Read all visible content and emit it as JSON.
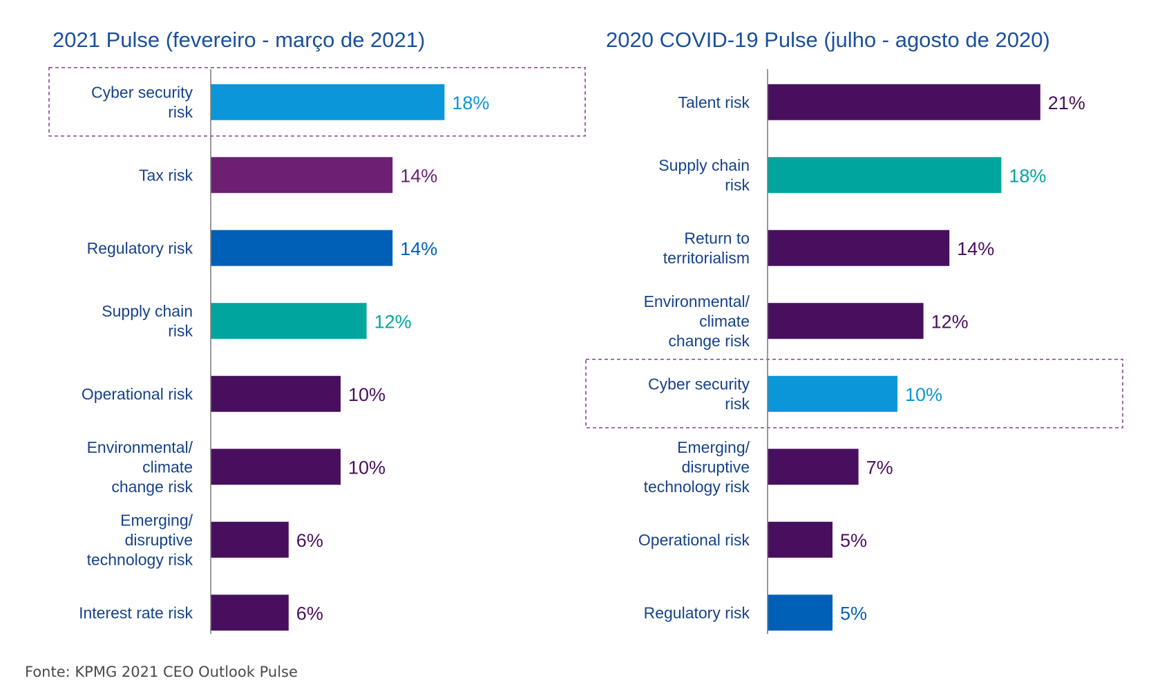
{
  "chart_data": [
    {
      "type": "bar",
      "orientation": "horizontal",
      "title": "2021 Pulse (fevereiro - março de 2021)",
      "unit": "%",
      "xlim": [
        0,
        25
      ],
      "highlighted_category": "Cyber security\nrisk",
      "categories": [
        "Cyber security\nrisk",
        "Tax risk",
        "Regulatory risk",
        "Supply chain\nrisk",
        "Operational risk",
        "Environmental/\nclimate\nchange risk",
        "Emerging/\ndisruptive\ntechnology risk",
        "Interest rate risk"
      ],
      "values": [
        18,
        14,
        14,
        12,
        10,
        10,
        6,
        6
      ],
      "labels": [
        "18%",
        "14%",
        "14%",
        "12%",
        "10%",
        "10%",
        "6%",
        "6%"
      ],
      "colors": [
        "#0a96d8",
        "#6b2073",
        "#0060b8",
        "#00a59d",
        "#490f5f",
        "#490f5f",
        "#490f5f",
        "#490f5f"
      ]
    },
    {
      "type": "bar",
      "orientation": "horizontal",
      "title": "2020 COVID-19 Pulse (julho - agosto de 2020)",
      "unit": "%",
      "xlim": [
        0,
        25
      ],
      "highlighted_category": "Cyber security\nrisk",
      "categories": [
        "Talent risk",
        "Supply chain\nrisk",
        "Return to\nterritorialism",
        "Environmental/\nclimate\nchange risk",
        "Cyber security\nrisk",
        "Emerging/\ndisruptive\ntechnology risk",
        "Operational risk",
        "Regulatory risk"
      ],
      "values": [
        21,
        18,
        14,
        12,
        10,
        7,
        5,
        5
      ],
      "labels": [
        "21%",
        "18%",
        "14%",
        "12%",
        "10%",
        "7%",
        "5%",
        "5%"
      ],
      "colors": [
        "#490f5f",
        "#00a59d",
        "#490f5f",
        "#490f5f",
        "#0a96d8",
        "#490f5f",
        "#490f5f",
        "#0060b8"
      ]
    }
  ],
  "source": "Fonte: KPMG 2021 CEO Outlook Pulse",
  "colors": {
    "title": "#1b4f9b",
    "category_label": "#16428a",
    "axis": "#7f7f7f",
    "highlight_border": "#8a3f92",
    "source": "#4a4a4a"
  }
}
